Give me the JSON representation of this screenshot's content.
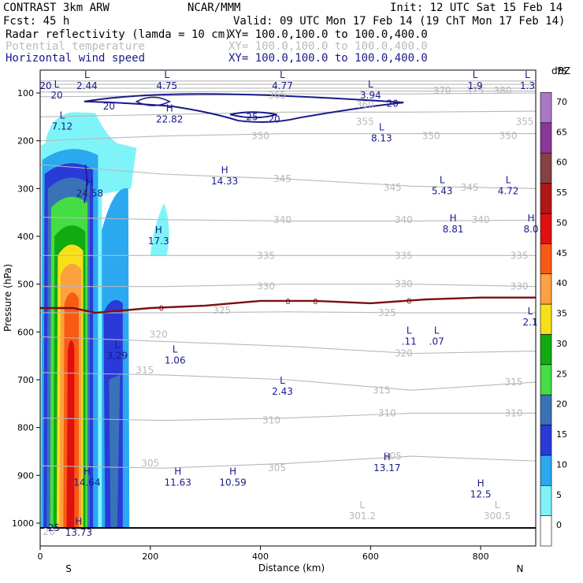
{
  "header": {
    "left1": "CONTRAST  3km ARW",
    "center1": "NCAR/MMM",
    "right1": "Init: 12 UTC Sat 15 Feb 14",
    "left2": "Fcst:   45 h",
    "right2": "Valid: 09 UTC Mon 17 Feb 14 (19 ChT Mon 17 Feb 14)",
    "field1_name": "Radar reflectivity (lamda = 10 cm)",
    "field1_xy": "XY= 100.0,100.0 to 100.0,400.0",
    "field2_name": "Potential temperature",
    "field2_xy": "XY= 100.0,100.0 to 100.0,400.0",
    "field3_name": "Horizontal wind speed",
    "field3_xy": "XY= 100.0,100.0 to 100.0,400.0"
  },
  "colors": {
    "theta": "#b8b8b8",
    "wind": "#1a1a8c",
    "freezing": "#7a1010",
    "dbz": [
      "#ffffff",
      "#7ef4f8",
      "#2aa9f0",
      "#2a3ad8",
      "#3a72b8",
      "#44dd44",
      "#11aa11",
      "#f8e018",
      "#fca040",
      "#f85a14",
      "#e01010",
      "#b01818",
      "#884044",
      "#8a3898",
      "#aa78c4"
    ]
  },
  "chart_data": {
    "type": "heatmap",
    "title": "Radar reflectivity (lamda = 10 cm) / Potential temperature / Horizontal wind speed",
    "xlabel": "Distance (km)",
    "ylabel": "Pressure (hPa)",
    "xlim": [
      0,
      900
    ],
    "ylim": [
      1050,
      40
    ],
    "x_ticks": [
      0,
      200,
      400,
      600,
      800
    ],
    "y_ticks": [
      100,
      200,
      300,
      400,
      500,
      600,
      700,
      800,
      900,
      1000
    ],
    "x_endpoints": {
      "left": "S",
      "right": "N"
    },
    "colorbar": {
      "label": "dBZ",
      "levels": [
        0,
        5,
        10,
        15,
        20,
        25,
        30,
        35,
        40,
        45,
        50,
        55,
        60,
        65,
        70,
        75
      ]
    },
    "reflectivity_cores": [
      {
        "name": "main-core",
        "x0": 15,
        "x1": 100,
        "p_top": 200,
        "p_bottom": 1010,
        "max_dbz": 55
      },
      {
        "name": "secondary-column",
        "x0": 115,
        "x1": 160,
        "p_top": 300,
        "p_bottom": 1010,
        "max_dbz": 25
      },
      {
        "name": "anvil",
        "x0": 10,
        "x1": 175,
        "p_top": 140,
        "p_bottom": 310,
        "max_dbz": 10
      }
    ],
    "theta_labels": [
      {
        "text": "380",
        "x": 840,
        "p": 95
      },
      {
        "text": "375",
        "x": 790,
        "p": 95
      },
      {
        "text": "370",
        "x": 730,
        "p": 95
      },
      {
        "text": "365",
        "x": 430,
        "p": 105
      },
      {
        "text": "360",
        "x": 590,
        "p": 125
      },
      {
        "text": "355",
        "x": 590,
        "p": 160
      },
      {
        "text": "355",
        "x": 880,
        "p": 160
      },
      {
        "text": "350",
        "x": 400,
        "p": 190
      },
      {
        "text": "350",
        "x": 710,
        "p": 190
      },
      {
        "text": "350",
        "x": 850,
        "p": 190
      },
      {
        "text": "345",
        "x": 440,
        "p": 280
      },
      {
        "text": "345",
        "x": 640,
        "p": 298
      },
      {
        "text": "345",
        "x": 780,
        "p": 298
      },
      {
        "text": "340",
        "x": 440,
        "p": 365
      },
      {
        "text": "340",
        "x": 660,
        "p": 365
      },
      {
        "text": "340",
        "x": 800,
        "p": 365
      },
      {
        "text": "335",
        "x": 410,
        "p": 440
      },
      {
        "text": "335",
        "x": 660,
        "p": 440
      },
      {
        "text": "335",
        "x": 870,
        "p": 440
      },
      {
        "text": "330",
        "x": 410,
        "p": 505
      },
      {
        "text": "330",
        "x": 660,
        "p": 500
      },
      {
        "text": "330",
        "x": 870,
        "p": 505
      },
      {
        "text": "325",
        "x": 330,
        "p": 555
      },
      {
        "text": "325",
        "x": 630,
        "p": 560
      },
      {
        "text": "320",
        "x": 215,
        "p": 605
      },
      {
        "text": "320",
        "x": 660,
        "p": 645
      },
      {
        "text": "315",
        "x": 190,
        "p": 680
      },
      {
        "text": "315",
        "x": 620,
        "p": 722
      },
      {
        "text": "315",
        "x": 860,
        "p": 705
      },
      {
        "text": "310",
        "x": 420,
        "p": 785
      },
      {
        "text": "310",
        "x": 630,
        "p": 770
      },
      {
        "text": "310",
        "x": 860,
        "p": 770
      },
      {
        "text": "305",
        "x": 200,
        "p": 875
      },
      {
        "text": "305",
        "x": 430,
        "p": 885
      },
      {
        "text": "305",
        "x": 640,
        "p": 860
      },
      {
        "text": "20",
        "x": 16,
        "p": 1018
      }
    ],
    "theta_lines": [
      {
        "p": [
          75,
          75,
          75,
          75,
          75
        ]
      },
      {
        "p": [
          82,
          82,
          82,
          82,
          82
        ]
      },
      {
        "p": [
          90,
          90,
          90,
          90,
          90
        ]
      },
      {
        "p": [
          98,
          98,
          96,
          96,
          96
        ]
      },
      {
        "p": [
          108,
          106,
          102,
          102,
          100
        ]
      },
      {
        "p": [
          150,
          145,
          140,
          140,
          138
        ]
      },
      {
        "p": [
          200,
          190,
          185,
          185,
          185
        ]
      },
      {
        "p": [
          250,
          270,
          280,
          295,
          300
        ]
      },
      {
        "p": [
          360,
          365,
          368,
          368,
          366
        ]
      },
      {
        "p": [
          440,
          440,
          440,
          440,
          440
        ]
      },
      {
        "p": [
          505,
          505,
          500,
          500,
          505
        ]
      },
      {
        "p": [
          560,
          560,
          558,
          560,
          560
        ]
      },
      {
        "p": [
          610,
          620,
          630,
          645,
          640
        ]
      },
      {
        "p": [
          685,
          690,
          700,
          722,
          705
        ]
      },
      {
        "p": [
          780,
          785,
          780,
          770,
          770
        ]
      },
      {
        "p": [
          880,
          885,
          875,
          860,
          870
        ]
      }
    ],
    "wind_labels": [
      {
        "text": "20",
        "x": 10,
        "p": 85
      },
      {
        "text": "20",
        "x": 125,
        "p": 128
      },
      {
        "text": "25",
        "x": 385,
        "p": 150
      },
      {
        "text": "20",
        "x": 425,
        "p": 155
      },
      {
        "text": "20",
        "x": 640,
        "p": 122
      },
      {
        "text": "25",
        "x": 25,
        "p": 1010
      }
    ],
    "freezing_level": {
      "label": "0",
      "x": [
        0,
        60,
        100,
        150,
        200,
        300,
        400,
        500,
        600,
        700,
        800,
        900
      ],
      "p": [
        550,
        550,
        560,
        555,
        550,
        545,
        535,
        535,
        540,
        532,
        528,
        528
      ]
    },
    "extrema_labels": [
      {
        "kind": "L",
        "value": "20",
        "x": 30,
        "p": 95
      },
      {
        "kind": "L",
        "value": "2.44",
        "x": 85,
        "p": 75
      },
      {
        "kind": "L",
        "value": "4.75",
        "x": 230,
        "p": 75
      },
      {
        "kind": "L",
        "value": "4.77",
        "x": 440,
        "p": 75
      },
      {
        "kind": "L",
        "value": "3.94",
        "x": 600,
        "p": 95
      },
      {
        "kind": "L",
        "value": "1.9",
        "x": 790,
        "p": 75
      },
      {
        "kind": "L",
        "value": "1.3",
        "x": 885,
        "p": 75
      },
      {
        "kind": "H",
        "value": "22.82",
        "x": 235,
        "p": 145
      },
      {
        "kind": "L",
        "value": "7.12",
        "x": 40,
        "p": 160
      },
      {
        "kind": "L",
        "value": "8.13",
        "x": 620,
        "p": 185
      },
      {
        "kind": "H",
        "value": "14.33",
        "x": 335,
        "p": 275
      },
      {
        "kind": "H",
        "value": "24.58",
        "x": 90,
        "p": 300
      },
      {
        "kind": "L",
        "value": "5.43",
        "x": 730,
        "p": 295
      },
      {
        "kind": "L",
        "value": "4.72",
        "x": 850,
        "p": 295
      },
      {
        "kind": "H",
        "value": "17.3",
        "x": 215,
        "p": 400
      },
      {
        "kind": "H",
        "value": "8.81",
        "x": 750,
        "p": 375
      },
      {
        "kind": "H",
        "value": "8.0",
        "x": 895,
        "p": 375
      },
      {
        "kind": "L",
        "value": "2.1",
        "x": 890,
        "p": 570
      },
      {
        "kind": "L",
        "value": ".11",
        "x": 670,
        "p": 610
      },
      {
        "kind": "L",
        "value": ".07",
        "x": 720,
        "p": 610
      },
      {
        "kind": "L",
        "value": "3.29",
        "x": 140,
        "p": 640
      },
      {
        "kind": "L",
        "value": "1.06",
        "x": 245,
        "p": 650
      },
      {
        "kind": "L",
        "value": "2.43",
        "x": 440,
        "p": 715
      },
      {
        "kind": "H",
        "value": "13.17",
        "x": 630,
        "p": 875
      },
      {
        "kind": "H",
        "value": "14.64",
        "x": 85,
        "p": 905
      },
      {
        "kind": "H",
        "value": "11.63",
        "x": 250,
        "p": 905
      },
      {
        "kind": "H",
        "value": "10.59",
        "x": 350,
        "p": 905
      },
      {
        "kind": "H",
        "value": "12.5",
        "x": 800,
        "p": 930
      },
      {
        "kind": "H",
        "value": "13.73",
        "x": 70,
        "p": 1010
      }
    ],
    "theta_extrema_labels": [
      {
        "kind": "L",
        "value": "301.2",
        "x": 585,
        "p": 975
      },
      {
        "kind": "L",
        "value": "300.5",
        "x": 830,
        "p": 975
      }
    ]
  }
}
